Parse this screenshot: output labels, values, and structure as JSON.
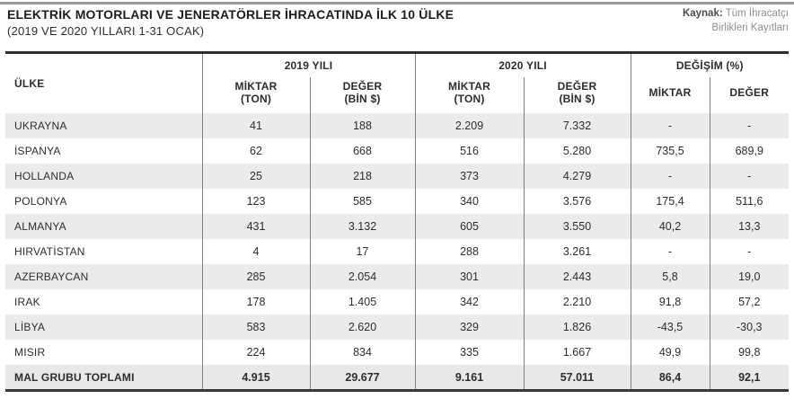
{
  "page": {
    "title": "ELEKTRİK MOTORLARI VE JENERATÖRLER İHRACATINDA İLK 10 ÜLKE",
    "subtitle": "(2019 VE 2020 YILLARI 1-31 OCAK)",
    "source_label": "Kaynak:",
    "source_text": "Tüm İhracatçı\nBirlikleri Kayıtları"
  },
  "table": {
    "country_header": "ÜLKE",
    "group_2019": "2019 YILI",
    "group_2020": "2020 YILI",
    "group_change": "DEĞİŞİM (%)",
    "subheaders": [
      "MİKTAR\n(TON)",
      "DEĞER\n(BİN $)",
      "MİKTAR\n(TON)",
      "DEĞER\n(BİN $)",
      "MİKTAR",
      "DEĞER"
    ]
  },
  "colors": {
    "stripe": "#ebebeb",
    "total_row": "#e8e8e8",
    "grid_line": "#7f7f7f",
    "heavy_rule": "#2e2e2e",
    "source_gray": "#8e8e8e"
  },
  "chart_data": {
    "type": "table",
    "title": "ELEKTRİK MOTORLARI VE JENERATÖRLER İHRACATINDA İLK 10 ÜLKE",
    "subtitle": "(2019 VE 2020 YILLARI 1-31 OCAK)",
    "source": "Kaynak: Tüm İhracatçı Birlikleri Kayıtları",
    "column_groups": [
      "ÜLKE",
      "2019 YILI",
      "2020 YILI",
      "DEĞİŞİM (%)"
    ],
    "columns": [
      "ÜLKE",
      "2019 MİKTAR (TON)",
      "2019 DEĞER (BİN $)",
      "2020 MİKTAR (TON)",
      "2020 DEĞER (BİN $)",
      "DEĞİŞİM MİKTAR (%)",
      "DEĞİŞİM DEĞER (%)"
    ],
    "rows": [
      [
        "UKRAYNA",
        "41",
        "188",
        "2.209",
        "7.332",
        "-",
        "-"
      ],
      [
        "İSPANYA",
        "62",
        "668",
        "516",
        "5.280",
        "735,5",
        "689,9"
      ],
      [
        "HOLLANDA",
        "25",
        "218",
        "373",
        "4.279",
        "-",
        "-"
      ],
      [
        "POLONYA",
        "123",
        "585",
        "340",
        "3.576",
        "175,4",
        "511,6"
      ],
      [
        "ALMANYA",
        "431",
        "3.132",
        "605",
        "3.550",
        "40,2",
        "13,3"
      ],
      [
        "HIRVATİSTAN",
        "4",
        "17",
        "288",
        "3.261",
        "-",
        "-"
      ],
      [
        "AZERBAYCAN",
        "285",
        "2.054",
        "301",
        "2.443",
        "5,8",
        "19,0"
      ],
      [
        "IRAK",
        "178",
        "1.405",
        "342",
        "2.210",
        "91,8",
        "57,2"
      ],
      [
        "LİBYA",
        "583",
        "2.620",
        "329",
        "1.826",
        "-43,5",
        "-30,3"
      ],
      [
        "MISIR",
        "224",
        "834",
        "335",
        "1.667",
        "49,9",
        "99,8"
      ]
    ],
    "total_row": [
      "MAL GRUBU TOPLAMI",
      "4.915",
      "29.677",
      "9.161",
      "57.011",
      "86,4",
      "92,1"
    ]
  }
}
